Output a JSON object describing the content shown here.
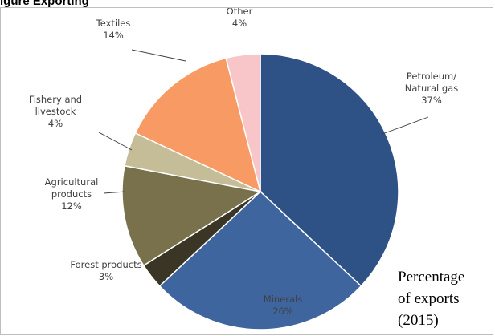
{
  "heading": "igure  Exporting",
  "caption": {
    "line1": "Percentage",
    "line2": "of exports",
    "line3": "(2015)"
  },
  "chart_data": {
    "type": "pie",
    "title": "",
    "unit": "%",
    "slices": [
      {
        "name": "Petroleum/ Natural gas",
        "lines": [
          "Petroleum/",
          "Natural gas"
        ],
        "value_label": "37%",
        "value": 37,
        "color": "#2e5186"
      },
      {
        "name": "Minerals",
        "lines": [
          "Minerals"
        ],
        "value_label": "26%",
        "value": 26,
        "color": "#3e659e"
      },
      {
        "name": "Forest products",
        "lines": [
          "Forest products"
        ],
        "value_label": "3%",
        "value": 3,
        "color": "#3b3525"
      },
      {
        "name": "Agricultural products",
        "lines": [
          "Agricultural",
          "products"
        ],
        "value_label": "12%",
        "value": 12,
        "color": "#79714b"
      },
      {
        "name": "Fishery and livestock",
        "lines": [
          "Fishery and",
          "livestock"
        ],
        "value_label": "4%",
        "value": 4,
        "color": "#c4bd98"
      },
      {
        "name": "Textiles",
        "lines": [
          "Textiles"
        ],
        "value_label": "14%",
        "value": 14,
        "color": "#f79a63"
      },
      {
        "name": "Other",
        "lines": [
          "Other"
        ],
        "value_label": "4%",
        "value": 4,
        "color": "#f8c6c8"
      }
    ]
  }
}
